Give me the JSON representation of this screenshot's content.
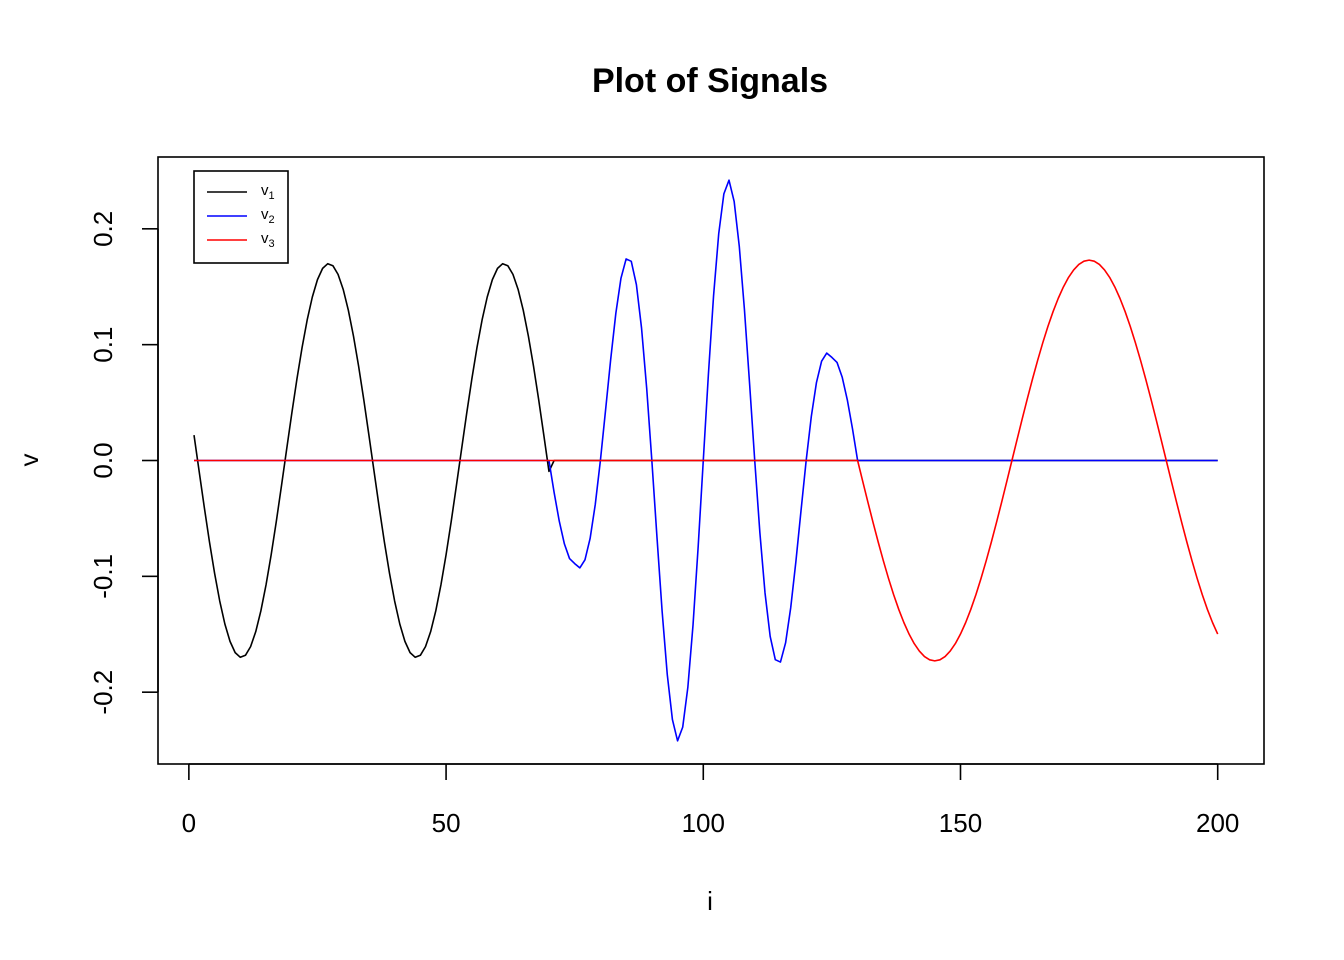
{
  "chart_data": {
    "type": "line",
    "title": "Plot of Signals",
    "xlabel": "i",
    "ylabel": "v",
    "xlim": [
      -6,
      209
    ],
    "ylim": [
      -0.262,
      0.262
    ],
    "xticks": [
      0,
      50,
      100,
      150,
      200
    ],
    "xtick_labels": [
      "0",
      "50",
      "100",
      "150",
      "200"
    ],
    "yticks": [
      -0.2,
      -0.1,
      0.0,
      0.1,
      0.2
    ],
    "ytick_labels": [
      "-0.2",
      "-0.1",
      "0.0",
      "0.1",
      "0.2"
    ],
    "grid": false,
    "legend_position": "top-left",
    "series": [
      {
        "name": "v",
        "subscript": "1",
        "color": "#000000",
        "description": "sine with amplitude 0.17 and period 34, defined for i = 1..70, otherwise 0",
        "amplitude": 0.17,
        "period": 34,
        "x_start": 1,
        "x_end": 70
      },
      {
        "name": "v",
        "subscript": "2",
        "color": "#0000ff",
        "description": "faster oscillation (period 20) with amplitude envelope peaking ~0.24 near i = 100, defined for i = 71..130, otherwise 0",
        "period": 20,
        "x_start": 71,
        "x_end": 130,
        "peaks": [
          {
            "x": 75,
            "y": -0.089
          },
          {
            "x": 85,
            "y": 0.174
          },
          {
            "x": 95,
            "y": -0.242
          },
          {
            "x": 105,
            "y": 0.242
          },
          {
            "x": 115,
            "y": -0.174
          },
          {
            "x": 125,
            "y": 0.089
          }
        ]
      },
      {
        "name": "v",
        "subscript": "3",
        "color": "#ff0000",
        "description": "sine with amplitude 0.173 and period 60, defined for i = 131..200, otherwise 0",
        "amplitude": 0.173,
        "period": 60,
        "x_start": 131,
        "x_end": 200
      }
    ]
  }
}
